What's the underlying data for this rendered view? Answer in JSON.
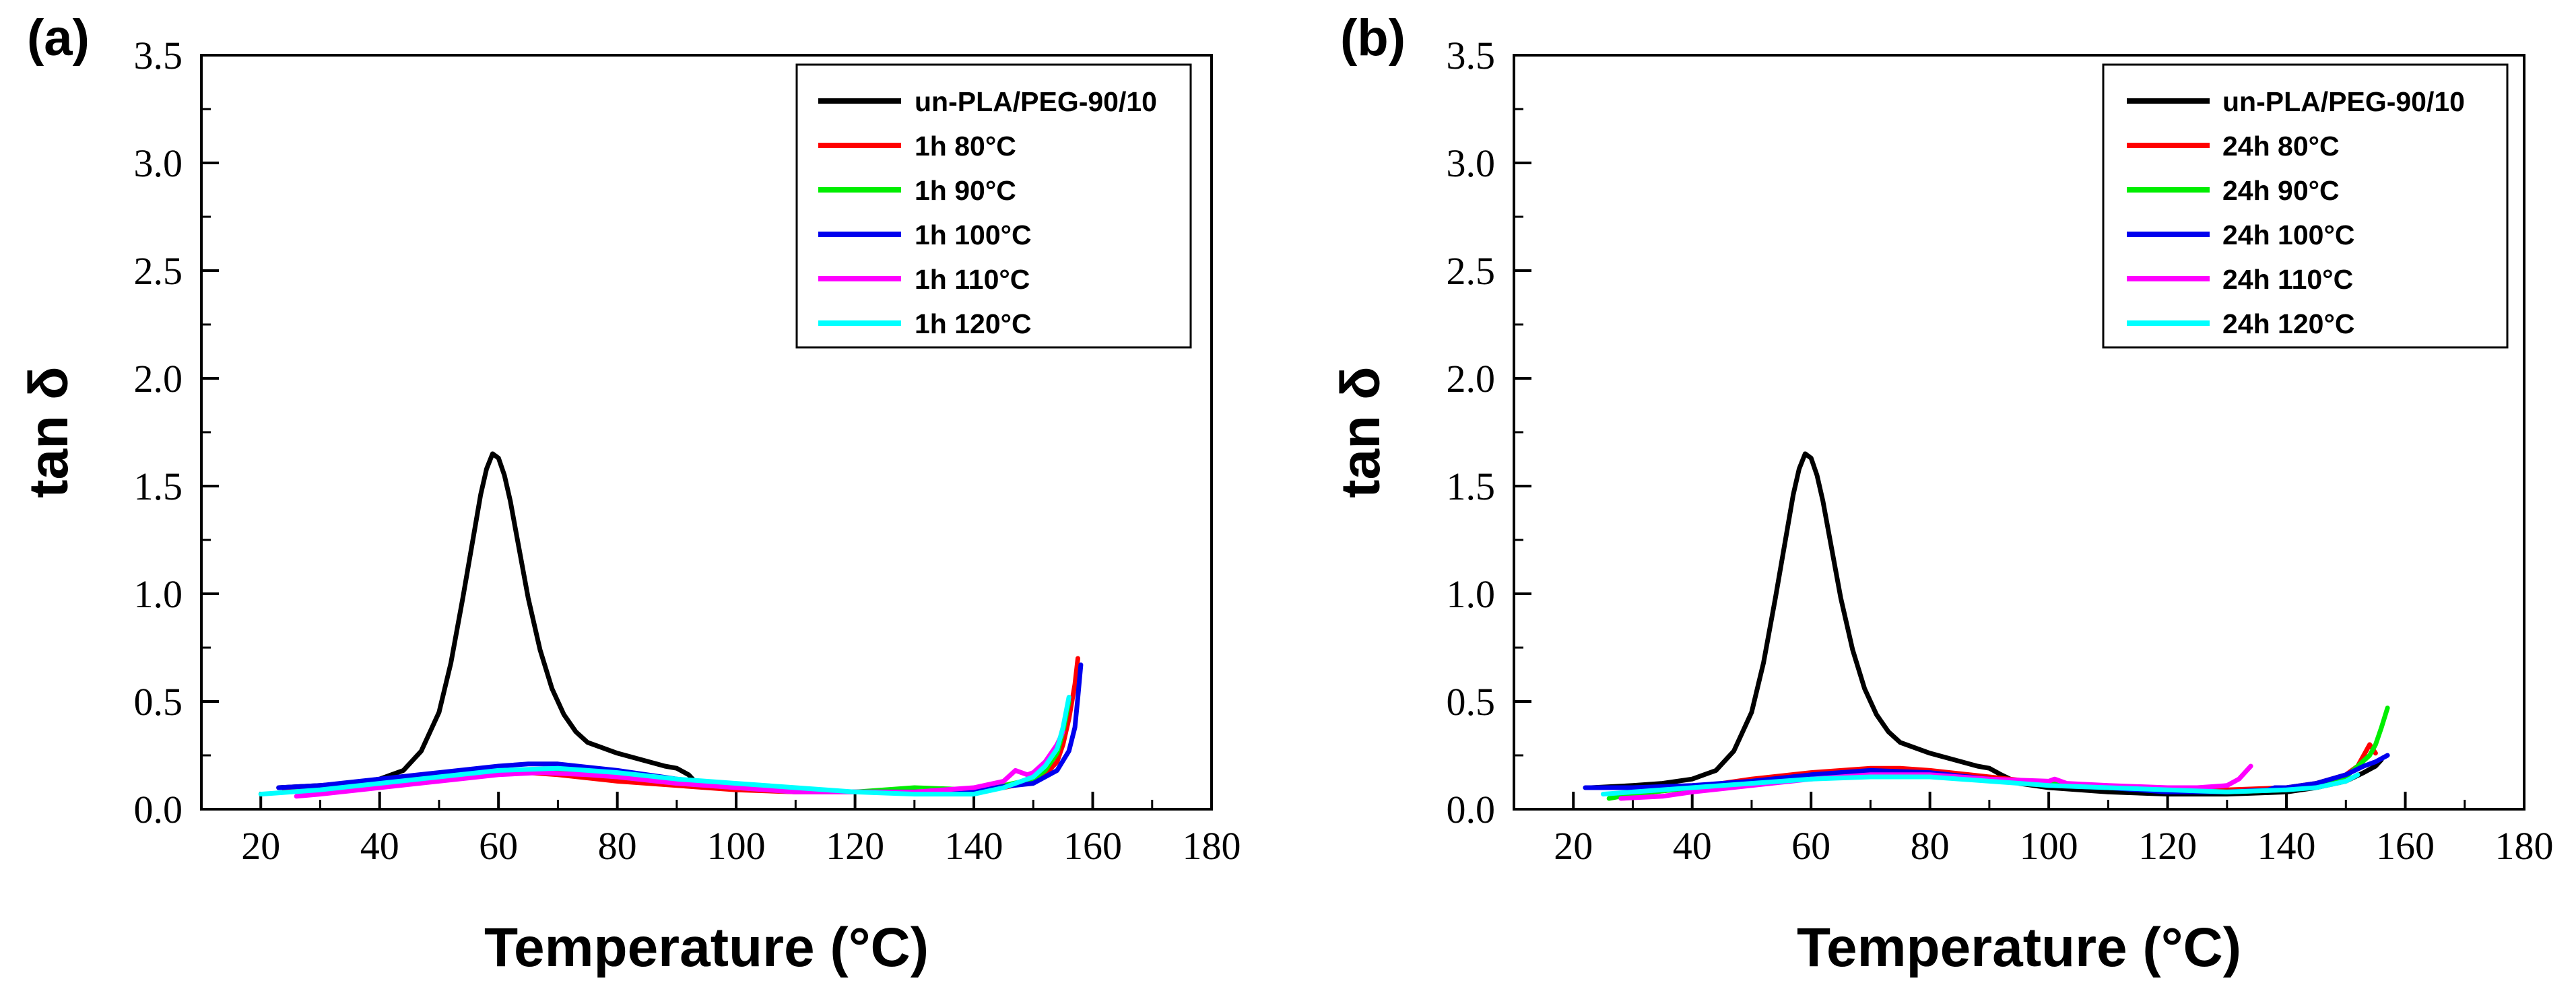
{
  "chart_data": [
    {
      "type": "line",
      "panel_label": "(a)",
      "xlabel": "Temperature (°C)",
      "ylabel": "tan δ",
      "xlim": [
        10,
        180
      ],
      "ylim": [
        0,
        3.5
      ],
      "xticks": [
        20,
        40,
        60,
        80,
        100,
        120,
        140,
        160,
        180
      ],
      "xtick_labels": [
        "20",
        "40",
        "60",
        "80",
        "100",
        "120",
        "140",
        "160",
        "180"
      ],
      "yticks": [
        0,
        0.5,
        1.0,
        1.5,
        2.0,
        2.5,
        3.0,
        3.5
      ],
      "ytick_labels": [
        "0.0",
        "0.5",
        "1.0",
        "1.5",
        "2.0",
        "2.5",
        "3.0",
        "3.5"
      ],
      "legend_position": "top-right",
      "series": [
        {
          "name": "un-PLA/PEG-90/10",
          "color": "#000000",
          "x": [
            23,
            30,
            35,
            40,
            44,
            47,
            50,
            52,
            54,
            56,
            57,
            58,
            59,
            60,
            61,
            62,
            63,
            65,
            67,
            69,
            71,
            73,
            75,
            78,
            80,
            84,
            88,
            90,
            92,
            93
          ],
          "y": [
            0.1,
            0.11,
            0.12,
            0.14,
            0.18,
            0.27,
            0.45,
            0.68,
            0.98,
            1.3,
            1.46,
            1.58,
            1.65,
            1.63,
            1.55,
            1.43,
            1.28,
            0.98,
            0.74,
            0.56,
            0.44,
            0.36,
            0.31,
            0.28,
            0.26,
            0.23,
            0.2,
            0.19,
            0.16,
            0.13
          ]
        },
        {
          "name": "1h 80°C",
          "color": "#ff0000",
          "x": [
            24,
            30,
            40,
            50,
            60,
            65,
            70,
            80,
            90,
            100,
            110,
            120,
            130,
            140,
            145,
            150,
            152,
            154,
            155,
            156,
            157,
            157.5
          ],
          "y": [
            0.09,
            0.1,
            0.12,
            0.15,
            0.17,
            0.17,
            0.16,
            0.13,
            0.11,
            0.09,
            0.08,
            0.08,
            0.08,
            0.09,
            0.1,
            0.13,
            0.16,
            0.22,
            0.3,
            0.42,
            0.58,
            0.7
          ]
        },
        {
          "name": "1h 90°C",
          "color": "#00ee00",
          "x": [
            25,
            30,
            40,
            50,
            60,
            65,
            70,
            80,
            90,
            100,
            110,
            120,
            130,
            140,
            145,
            150,
            152,
            154,
            155,
            156
          ],
          "y": [
            0.08,
            0.09,
            0.11,
            0.14,
            0.17,
            0.18,
            0.17,
            0.15,
            0.12,
            0.1,
            0.08,
            0.08,
            0.1,
            0.09,
            0.11,
            0.14,
            0.18,
            0.26,
            0.36,
            0.5
          ]
        },
        {
          "name": "1h 100°C",
          "color": "#0000ee",
          "x": [
            23,
            30,
            40,
            50,
            60,
            65,
            70,
            80,
            90,
            100,
            110,
            120,
            130,
            140,
            150,
            154,
            156,
            157,
            157.5,
            158
          ],
          "y": [
            0.1,
            0.11,
            0.14,
            0.17,
            0.2,
            0.21,
            0.21,
            0.18,
            0.14,
            0.11,
            0.09,
            0.08,
            0.08,
            0.09,
            0.12,
            0.18,
            0.27,
            0.38,
            0.52,
            0.67
          ]
        },
        {
          "name": "1h 110°C",
          "color": "#ff00ff",
          "x": [
            26,
            30,
            40,
            50,
            60,
            67,
            75,
            80,
            90,
            100,
            110,
            120,
            130,
            140,
            145,
            147,
            149,
            150,
            152,
            154,
            155
          ],
          "y": [
            0.06,
            0.07,
            0.1,
            0.13,
            0.16,
            0.17,
            0.16,
            0.15,
            0.12,
            0.1,
            0.08,
            0.08,
            0.08,
            0.1,
            0.13,
            0.18,
            0.16,
            0.17,
            0.22,
            0.3,
            0.36
          ]
        },
        {
          "name": "1h 120°C",
          "color": "#00ffff",
          "x": [
            20,
            30,
            40,
            50,
            60,
            70,
            80,
            90,
            100,
            110,
            120,
            130,
            140,
            145,
            150,
            152,
            154,
            155,
            156
          ],
          "y": [
            0.07,
            0.09,
            0.12,
            0.15,
            0.18,
            0.19,
            0.17,
            0.14,
            0.12,
            0.1,
            0.08,
            0.07,
            0.07,
            0.1,
            0.15,
            0.2,
            0.28,
            0.38,
            0.52
          ]
        }
      ]
    },
    {
      "type": "line",
      "panel_label": "(b)",
      "xlabel": "Temperature (°C)",
      "ylabel": "tan δ",
      "xlim": [
        10,
        180
      ],
      "ylim": [
        0,
        3.5
      ],
      "xticks": [
        20,
        40,
        60,
        80,
        100,
        120,
        140,
        160,
        180
      ],
      "xtick_labels": [
        "20",
        "40",
        "60",
        "80",
        "100",
        "120",
        "140",
        "160",
        "180"
      ],
      "yticks": [
        0,
        0.5,
        1.0,
        1.5,
        2.0,
        2.5,
        3.0,
        3.5
      ],
      "ytick_labels": [
        "0.0",
        "0.5",
        "1.0",
        "1.5",
        "2.0",
        "2.5",
        "3.0",
        "3.5"
      ],
      "legend_position": "top-right",
      "series": [
        {
          "name": "un-PLA/PEG-90/10",
          "color": "#000000",
          "x": [
            23,
            30,
            35,
            40,
            44,
            47,
            50,
            52,
            54,
            56,
            57,
            58,
            59,
            60,
            61,
            62,
            63,
            65,
            67,
            69,
            71,
            73,
            75,
            78,
            80,
            84,
            88,
            90,
            92,
            95,
            100,
            110,
            120,
            130,
            140,
            145,
            150,
            153,
            155,
            156
          ],
          "y": [
            0.1,
            0.11,
            0.12,
            0.14,
            0.18,
            0.27,
            0.45,
            0.68,
            0.98,
            1.3,
            1.46,
            1.58,
            1.65,
            1.63,
            1.55,
            1.43,
            1.28,
            0.98,
            0.74,
            0.56,
            0.44,
            0.36,
            0.31,
            0.28,
            0.26,
            0.23,
            0.2,
            0.19,
            0.16,
            0.12,
            0.1,
            0.08,
            0.07,
            0.07,
            0.08,
            0.1,
            0.13,
            0.17,
            0.2,
            0.23
          ]
        },
        {
          "name": "24h 80°C",
          "color": "#ff0000",
          "x": [
            27,
            30,
            40,
            50,
            60,
            70,
            75,
            80,
            90,
            100,
            110,
            120,
            130,
            140,
            145,
            150,
            152,
            153,
            154,
            155
          ],
          "y": [
            0.06,
            0.07,
            0.1,
            0.14,
            0.17,
            0.19,
            0.19,
            0.18,
            0.15,
            0.12,
            0.1,
            0.09,
            0.09,
            0.1,
            0.12,
            0.16,
            0.2,
            0.25,
            0.3,
            0.26
          ]
        },
        {
          "name": "24h 90°C",
          "color": "#00ee00",
          "x": [
            26,
            30,
            40,
            50,
            60,
            70,
            80,
            90,
            100,
            110,
            120,
            130,
            140,
            145,
            150,
            152,
            154,
            155,
            156,
            157
          ],
          "y": [
            0.05,
            0.07,
            0.1,
            0.13,
            0.15,
            0.16,
            0.16,
            0.14,
            0.12,
            0.1,
            0.09,
            0.08,
            0.09,
            0.11,
            0.15,
            0.2,
            0.25,
            0.3,
            0.38,
            0.47
          ]
        },
        {
          "name": "24h 100°C",
          "color": "#0000ee",
          "x": [
            22,
            30,
            40,
            50,
            60,
            70,
            80,
            90,
            100,
            110,
            120,
            130,
            137,
            138,
            140,
            145,
            150,
            153,
            155,
            157
          ],
          "y": [
            0.1,
            0.1,
            0.11,
            0.13,
            0.16,
            0.18,
            0.17,
            0.14,
            0.11,
            0.1,
            0.08,
            0.08,
            0.09,
            0.1,
            0.1,
            0.12,
            0.16,
            0.2,
            0.22,
            0.25
          ]
        },
        {
          "name": "24h 110°C",
          "color": "#ff00ff",
          "x": [
            28,
            35,
            40,
            50,
            60,
            70,
            80,
            90,
            100,
            101,
            103,
            110,
            120,
            125,
            130,
            132,
            133,
            134
          ],
          "y": [
            0.05,
            0.06,
            0.08,
            0.11,
            0.14,
            0.16,
            0.16,
            0.14,
            0.13,
            0.14,
            0.12,
            0.11,
            0.1,
            0.1,
            0.11,
            0.14,
            0.17,
            0.2
          ]
        },
        {
          "name": "24h 120°C",
          "color": "#00ffff",
          "x": [
            25,
            30,
            40,
            50,
            60,
            70,
            80,
            90,
            100,
            110,
            120,
            130,
            140,
            145,
            150,
            152
          ],
          "y": [
            0.07,
            0.08,
            0.1,
            0.12,
            0.14,
            0.15,
            0.15,
            0.13,
            0.11,
            0.1,
            0.09,
            0.08,
            0.09,
            0.1,
            0.13,
            0.16
          ]
        }
      ]
    }
  ]
}
